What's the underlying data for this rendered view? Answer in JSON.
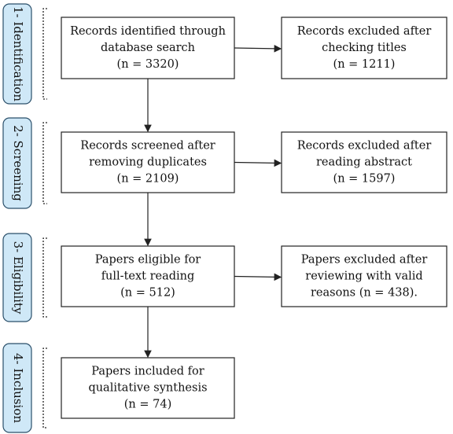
{
  "stages": [
    {
      "label": "1- Identification"
    },
    {
      "label": "2- Screening"
    },
    {
      "label": "3- Eligibility"
    },
    {
      "label": "4- Inclusion"
    }
  ],
  "main_boxes": [
    {
      "lines": [
        "Records identified through",
        "database search",
        "(n = 3320)"
      ]
    },
    {
      "lines": [
        "Records screened after",
        "removing duplicates",
        "(n = 2109)"
      ]
    },
    {
      "lines": [
        "Papers eligible for",
        "full-text reading",
        "(n = 512)"
      ]
    },
    {
      "lines": [
        "Papers included for",
        "qualitative synthesis",
        "(n = 74)"
      ]
    }
  ],
  "excluded_boxes": [
    {
      "lines": [
        "Records excluded after",
        "checking titles",
        "(n = 1211)"
      ]
    },
    {
      "lines": [
        "Records excluded after",
        "reading abstract",
        "(n = 1597)"
      ]
    },
    {
      "lines": [
        "Papers excluded after",
        "reviewing with valid",
        "reasons (n = 438)."
      ]
    }
  ]
}
